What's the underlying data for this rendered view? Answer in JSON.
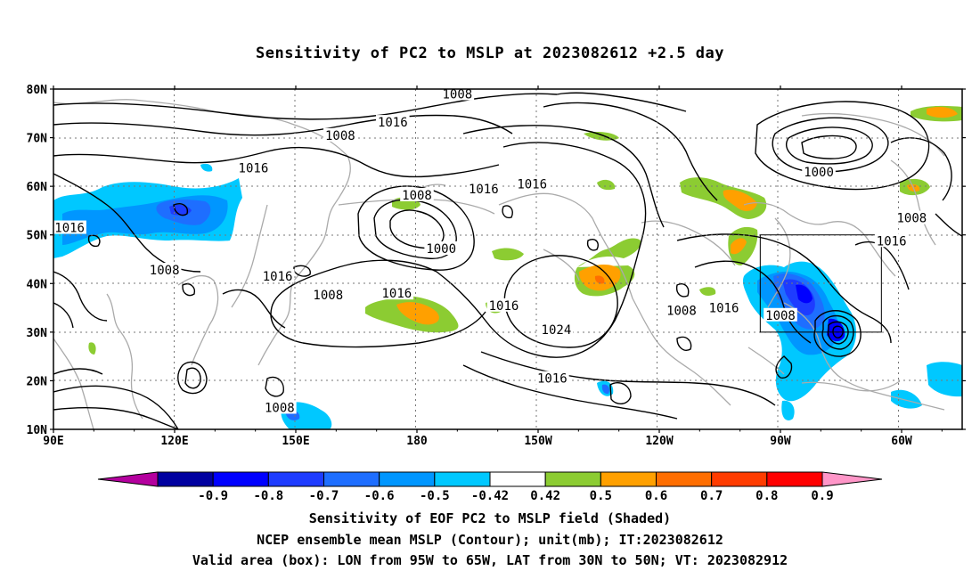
{
  "title": "Sensitivity of PC2 to MSLP at 2023082612 +2.5 day",
  "map": {
    "lat_labels": [
      "80N",
      "70N",
      "60N",
      "50N",
      "40N",
      "30N",
      "20N",
      "10N"
    ],
    "lon_labels": [
      "90E",
      "120E",
      "150E",
      "180",
      "150W",
      "120W",
      "90W",
      "60W"
    ],
    "contour_labels": [
      {
        "text": "1008",
        "lon": 161.0,
        "lat": 70.5
      },
      {
        "text": "1016",
        "lon": 139.5,
        "lat": 63.8
      },
      {
        "text": "1016",
        "lon": 174.0,
        "lat": 73.2
      },
      {
        "text": "1008",
        "lon": -170.0,
        "lat": 79.0
      },
      {
        "text": "1000",
        "lon": -80.5,
        "lat": 63.0
      },
      {
        "text": "1016",
        "lon": 94.0,
        "lat": 51.5
      },
      {
        "text": "1008",
        "lon": 180.0,
        "lat": 58.2
      },
      {
        "text": "1016",
        "lon": 196.5,
        "lat": 59.5
      },
      {
        "text": "1016",
        "lon": 208.5,
        "lat": 60.5
      },
      {
        "text": "1000",
        "lon": 186.0,
        "lat": 47.2
      },
      {
        "text": "1008",
        "lon": 117.5,
        "lat": 42.8
      },
      {
        "text": "1016",
        "lon": 145.5,
        "lat": 41.5
      },
      {
        "text": "1008",
        "lon": 158.0,
        "lat": 37.7
      },
      {
        "text": "1016",
        "lon": 175.0,
        "lat": 38.0
      },
      {
        "text": "1016",
        "lon": 201.5,
        "lat": 35.5
      },
      {
        "text": "1024",
        "lon": 214.5,
        "lat": 30.5
      },
      {
        "text": "1008",
        "lon": 245.5,
        "lat": 34.5
      },
      {
        "text": "1016",
        "lon": 256.0,
        "lat": 35.0
      },
      {
        "text": "1008",
        "lon": 270.0,
        "lat": 33.5
      },
      {
        "text": "1008",
        "lon": -57.5,
        "lat": 53.5
      },
      {
        "text": "1016",
        "lon": -62.5,
        "lat": 48.8
      },
      {
        "text": "1016",
        "lon": 213.5,
        "lat": 20.5
      },
      {
        "text": "1008",
        "lon": 146.0,
        "lat": 14.5
      }
    ],
    "box": {
      "lon_min": -95,
      "lon_max": -65,
      "lat_min": 30,
      "lat_max": 50
    }
  },
  "colorbar": {
    "tick_labels": [
      "-0.9",
      "-0.8",
      "-0.7",
      "-0.6",
      "-0.5",
      "-0.42",
      "0.42",
      "0.5",
      "0.6",
      "0.7",
      "0.8",
      "0.9"
    ],
    "colors": [
      "#b4009e",
      "#0000a0",
      "#0000ff",
      "#1e3cff",
      "#1e6eff",
      "#0096ff",
      "#00c8ff",
      "#ffffff",
      "#8ccc32",
      "#ffa000",
      "#ff6e00",
      "#ff3c00",
      "#ff0000",
      "#ff96c8"
    ]
  },
  "captions": {
    "line1": "Sensitivity of EOF PC2 to MSLP field (Shaded)",
    "line2": "NCEP ensemble mean MSLP (Contour); unit(mb); IT:2023082612",
    "line3": "Valid area (box): LON from 95W to 65W, LAT from 30N to 50N; VT: 2023082912"
  }
}
